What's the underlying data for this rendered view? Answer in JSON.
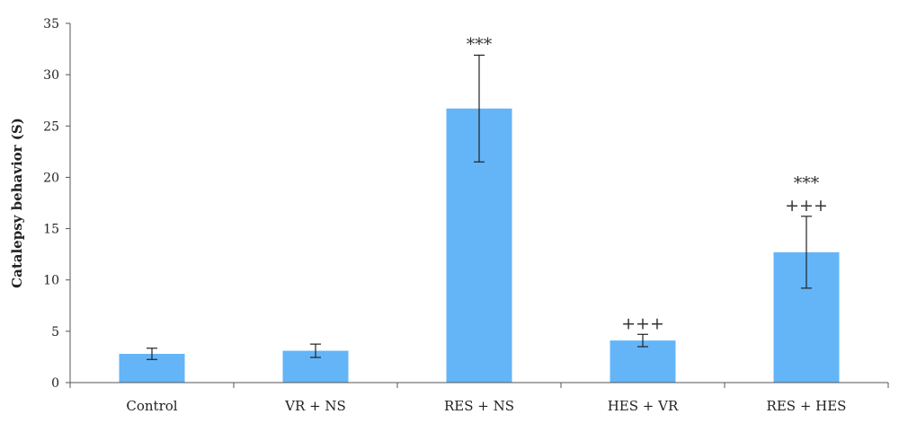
{
  "chart_data": {
    "type": "bar",
    "title": "",
    "xlabel": "",
    "ylabel": "Catalepsy behavior (S)",
    "ylim": [
      0,
      35
    ],
    "yticks": [
      0,
      5,
      10,
      15,
      20,
      25,
      30,
      35
    ],
    "grid": false,
    "legend": "none",
    "bar_color": "#63b5f8",
    "categories": [
      "Control",
      "VR + NS",
      "RES + NS",
      "HES + VR",
      "RES + HES"
    ],
    "values": [
      2.8,
      3.1,
      26.7,
      4.1,
      12.7
    ],
    "errors": [
      0.55,
      0.65,
      5.2,
      0.6,
      3.5
    ],
    "annotations": [
      {
        "category": "RES + NS",
        "lines": [
          "***"
        ]
      },
      {
        "category": "HES + VR",
        "lines": [
          "+++"
        ]
      },
      {
        "category": "RES + HES",
        "lines": [
          "***",
          "+++"
        ]
      }
    ]
  }
}
